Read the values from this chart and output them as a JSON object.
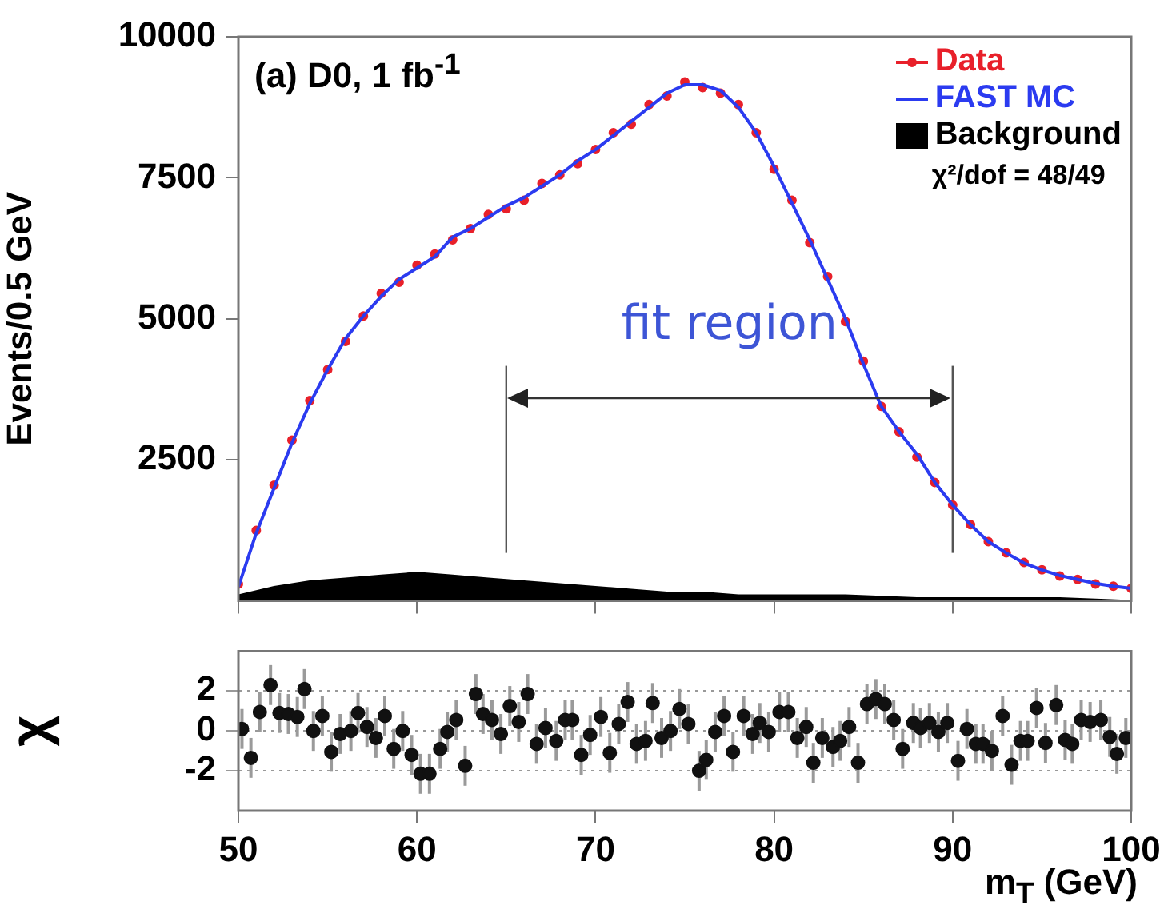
{
  "chart_data": [
    {
      "type": "line",
      "title": "(a) D0, 1 fb$^{-1}$",
      "ylabel": "Events/0.5 GeV",
      "annotations": [
        "χ²/dof = 48/49",
        "fit region"
      ],
      "legend": "top right",
      "grid": false,
      "tick_labels": "y",
      "xlim": [
        50,
        100
      ],
      "xticks": [
        50,
        60,
        70,
        80,
        90,
        100
      ],
      "ylim": [
        0,
        10000
      ],
      "yticks": [
        2500,
        5000,
        7500,
        10000
      ],
      "x": [
        50,
        51,
        52,
        53,
        54,
        55,
        56,
        57,
        58,
        59,
        60,
        61,
        62,
        63,
        64,
        65,
        66,
        67,
        68,
        69,
        70,
        71,
        72,
        73,
        74,
        75,
        76,
        77,
        78,
        79,
        80,
        81,
        82,
        83,
        84,
        85,
        86,
        87,
        88,
        89,
        90,
        91,
        92,
        93,
        94,
        95,
        96,
        97,
        98,
        99,
        100
      ],
      "ref_lines": [
        {
          "axis": "x",
          "value": 65,
          "color": "#555555"
        },
        {
          "axis": "x",
          "value": 90,
          "color": "#555555"
        }
      ],
      "series": [
        {
          "name": "Background",
          "type": "area",
          "color": "#000000",
          "x": [
            50,
            52,
            54,
            56,
            58,
            60,
            62,
            64,
            66,
            68,
            70,
            72,
            74,
            76,
            78,
            80,
            84,
            88,
            92,
            96,
            100
          ],
          "values": [
            100,
            250,
            350,
            400,
            450,
            500,
            450,
            400,
            350,
            300,
            250,
            200,
            150,
            150,
            100,
            100,
            100,
            50,
            50,
            50,
            0
          ]
        },
        {
          "name": "FAST MC",
          "type": "line",
          "color": "#2b3bf0",
          "values": [
            250,
            1200,
            2000,
            2800,
            3500,
            4100,
            4650,
            5050,
            5400,
            5700,
            5900,
            6100,
            6450,
            6600,
            6800,
            7000,
            7150,
            7350,
            7550,
            7800,
            8000,
            8250,
            8500,
            8750,
            9000,
            9150,
            9150,
            9050,
            8750,
            8300,
            7700,
            7050,
            6400,
            5700,
            5000,
            4200,
            3450,
            3000,
            2600,
            2100,
            1700,
            1350,
            1050,
            850,
            670,
            550,
            450,
            380,
            310,
            260,
            220
          ]
        },
        {
          "name": "Data",
          "type": "scatter",
          "marker": "circle",
          "color": "#e8202a",
          "values": [
            300,
            1250,
            2050,
            2850,
            3550,
            4100,
            4600,
            5050,
            5450,
            5650,
            5950,
            6150,
            6400,
            6600,
            6850,
            6950,
            7100,
            7400,
            7550,
            7750,
            8000,
            8300,
            8450,
            8800,
            8950,
            9200,
            9100,
            9000,
            8800,
            8300,
            7650,
            7100,
            6350,
            5750,
            4950,
            4250,
            3450,
            3000,
            2550,
            2100,
            1700,
            1350,
            1050,
            850,
            680,
            550,
            440,
            380,
            300,
            260,
            220
          ]
        }
      ]
    },
    {
      "type": "scatter",
      "marker": "circle",
      "xlabel": "m$_{T}$ (GeV)",
      "ylabel": "χ",
      "grid": "y",
      "xlim": [
        50,
        100
      ],
      "xticks": [
        50,
        60,
        70,
        80,
        90,
        100
      ],
      "ylim": [
        -4,
        4
      ],
      "yticks": [
        -2,
        0,
        2
      ],
      "x": [
        50.2,
        50.7,
        51.2,
        51.8,
        52.3,
        52.8,
        53.3,
        53.7,
        54.2,
        54.7,
        55.2,
        55.7,
        56.3,
        56.7,
        57.2,
        57.7,
        58.2,
        58.7,
        59.2,
        59.7,
        60.2,
        60.7,
        61.3,
        61.7,
        62.2,
        62.7,
        63.3,
        63.7,
        64.2,
        64.7,
        65.2,
        65.7,
        66.2,
        66.7,
        67.2,
        67.8,
        68.3,
        68.7,
        69.2,
        69.7,
        70.3,
        70.8,
        71.3,
        71.8,
        72.3,
        72.8,
        73.2,
        73.7,
        74.2,
        74.7,
        75.2,
        75.8,
        76.2,
        76.7,
        77.2,
        77.7,
        78.3,
        78.8,
        79.2,
        79.7,
        80.3,
        80.8,
        81.3,
        81.8,
        82.2,
        82.7,
        83.3,
        83.7,
        84.2,
        84.7,
        85.2,
        85.7,
        86.2,
        86.7,
        87.2,
        87.8,
        88.2,
        88.7,
        89.2,
        89.7,
        90.3,
        90.8,
        91.3,
        91.7,
        92.2,
        92.8,
        93.3,
        93.8,
        94.2,
        94.7,
        95.2,
        95.8,
        96.3,
        96.7,
        97.2,
        97.7,
        98.3,
        98.8,
        99.2,
        99.7
      ],
      "series": [
        {
          "color": "#111111",
          "values": [
            0.1,
            -1.35,
            0.95,
            2.3,
            0.9,
            0.85,
            0.7,
            2.1,
            0,
            0.75,
            -1.05,
            -0.15,
            0,
            0.9,
            0.2,
            -0.35,
            0.75,
            -0.9,
            0,
            -1.2,
            -2.15,
            -2.15,
            -0.9,
            -0.05,
            0.55,
            -1.75,
            1.85,
            0.85,
            0.55,
            -0.15,
            1.25,
            0.45,
            1.85,
            -0.65,
            0.15,
            -0.5,
            0.55,
            0.55,
            -1.2,
            -0.2,
            0.7,
            -1.1,
            0.35,
            1.45,
            -0.65,
            -0.5,
            1.4,
            -0.35,
            0,
            1.1,
            0.35,
            -2,
            -1.45,
            -0.05,
            0.75,
            -1.05,
            0.75,
            -0.15,
            0.4,
            -0.05,
            0.95,
            0.95,
            -0.35,
            0.2,
            -1.6,
            -0.35,
            -0.8,
            -0.5,
            0.2,
            -1.6,
            1.35,
            1.6,
            1.35,
            0.55,
            -0.9,
            0.4,
            0.15,
            0.4,
            -0.05,
            0.4,
            -1.5,
            0.1,
            -0.65,
            -0.65,
            -1,
            0.75,
            -1.7,
            -0.5,
            -0.5,
            1.15,
            -0.6,
            1.3,
            -0.45,
            -0.65,
            0.55,
            0.45,
            0.55,
            -0.3,
            -1.15,
            -0.35
          ],
          "errors": [
            1,
            1,
            1,
            1,
            1,
            1,
            1,
            1,
            1,
            1,
            1,
            1,
            1,
            1,
            1,
            1,
            1,
            1,
            1,
            1,
            1,
            1,
            1,
            1,
            1,
            1,
            1,
            1,
            1,
            1,
            1,
            1,
            1,
            1,
            1,
            1,
            1,
            1,
            1,
            1,
            1,
            1,
            1,
            1,
            1,
            1,
            1,
            1,
            1,
            1,
            1,
            1,
            1,
            1,
            1,
            1,
            1,
            1,
            1,
            1,
            1,
            1,
            1,
            1,
            1,
            1,
            1,
            1,
            1,
            1,
            1,
            1,
            1,
            1,
            1,
            1,
            1,
            1,
            1,
            1,
            1,
            1,
            1,
            1,
            1,
            1,
            1,
            1,
            1,
            1,
            1,
            1,
            1,
            1,
            1,
            1,
            1,
            1,
            1,
            1
          ]
        }
      ]
    }
  ]
}
